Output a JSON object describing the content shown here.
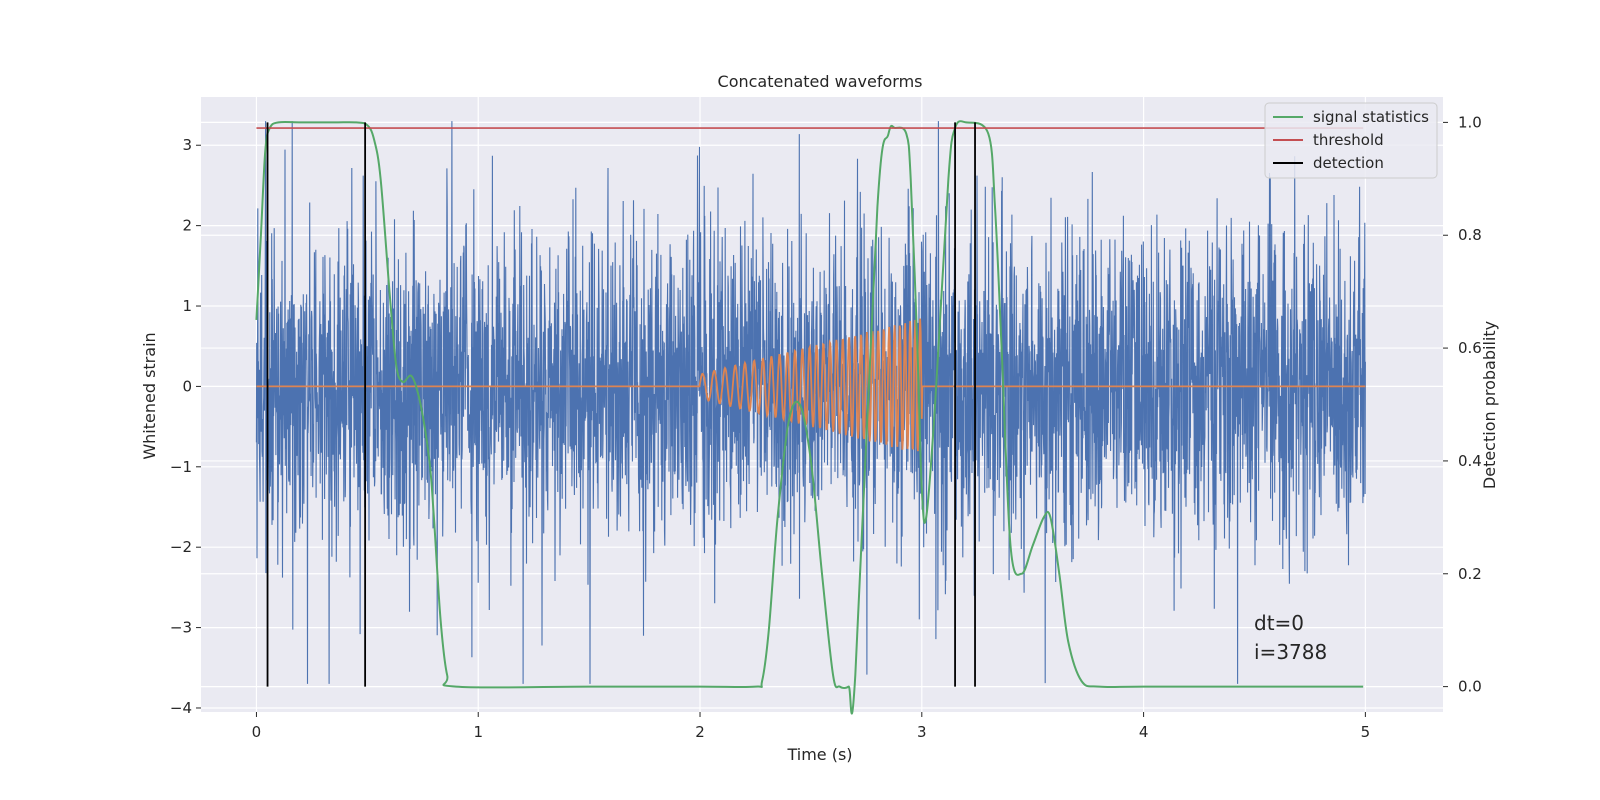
{
  "chart_data": {
    "type": "line",
    "title": "Concatenated waveforms",
    "xlabel": "Time (s)",
    "ylabel_left": "Whitened strain",
    "ylabel_right": "Detection probability",
    "xlim": [
      -0.25,
      5.35
    ],
    "ylim_left": [
      -4.05,
      3.6
    ],
    "ylim_right": [
      -0.045,
      1.045
    ],
    "x_ticks": [
      "0",
      "1",
      "2",
      "3",
      "4",
      "5"
    ],
    "x_tick_values": [
      0,
      1,
      2,
      3,
      4,
      5
    ],
    "y_left_ticks": [
      "−4",
      "−3",
      "−2",
      "−1",
      "0",
      "1",
      "2",
      "3"
    ],
    "y_left_tick_values": [
      -4,
      -3,
      -2,
      -1,
      0,
      1,
      2,
      3
    ],
    "y_right_ticks": [
      "0.0",
      "0.2",
      "0.4",
      "0.6",
      "0.8",
      "1.0"
    ],
    "y_right_tick_values": [
      0.0,
      0.2,
      0.4,
      0.6,
      0.8,
      1.0
    ],
    "grid": true,
    "legend_position": "top-right",
    "legend": [
      {
        "label": "signal statistics",
        "color": "#55a868"
      },
      {
        "label": "threshold",
        "color": "#c44e52"
      },
      {
        "label": "detection",
        "color": "#000000"
      }
    ],
    "series": [
      {
        "name": "",
        "axis": "left",
        "color": "#4c72b0",
        "kind": "noise",
        "x_range": [
          0,
          5
        ],
        "typical_amplitude": 1.0,
        "peak_range": [
          -3.7,
          3.3
        ]
      },
      {
        "name": "",
        "axis": "left",
        "color": "#dd8452",
        "kind": "chirp",
        "x_range": [
          2.0,
          3.0
        ],
        "amplitude_start": 0.15,
        "amplitude_end": 0.85,
        "frequency_start_hz": 18,
        "frequency_end_hz": 45
      },
      {
        "name": "signal statistics",
        "axis": "right",
        "color": "#55a868",
        "x": [
          0.0,
          0.02,
          0.04,
          0.06,
          0.1,
          0.2,
          0.35,
          0.45,
          0.5,
          0.53,
          0.56,
          0.6,
          0.63,
          0.66,
          0.7,
          0.74,
          0.78,
          0.8,
          0.83,
          0.86,
          0.9,
          1.5,
          2.0,
          2.25,
          2.28,
          2.31,
          2.35,
          2.4,
          2.45,
          2.5,
          2.55,
          2.6,
          2.63,
          2.67,
          2.7,
          2.8,
          2.85,
          2.88,
          2.93,
          2.95,
          2.98,
          3.0,
          3.02,
          3.06,
          3.12,
          3.15,
          3.2,
          3.3,
          3.33,
          3.36,
          3.4,
          3.45,
          3.5,
          3.55,
          3.58,
          3.62,
          3.66,
          3.72,
          3.8,
          4.0,
          4.5,
          4.99
        ],
        "y": [
          0.65,
          0.8,
          0.95,
          0.99,
          1.0,
          1.0,
          1.0,
          1.0,
          0.995,
          0.97,
          0.9,
          0.7,
          0.57,
          0.54,
          0.55,
          0.5,
          0.4,
          0.3,
          0.12,
          0.02,
          0.0,
          0.0,
          0.0,
          0.0,
          0.01,
          0.1,
          0.3,
          0.47,
          0.5,
          0.4,
          0.2,
          0.02,
          0.0,
          0.0,
          0.02,
          0.85,
          0.98,
          0.99,
          0.98,
          0.9,
          0.6,
          0.35,
          0.3,
          0.5,
          0.9,
          0.99,
          1.0,
          0.98,
          0.85,
          0.6,
          0.25,
          0.2,
          0.25,
          0.3,
          0.3,
          0.2,
          0.08,
          0.01,
          0.0,
          0.0,
          0.0,
          0.0
        ]
      },
      {
        "name": "threshold",
        "axis": "right",
        "color": "#c44e52",
        "x": [
          0,
          4.99
        ],
        "y": [
          0.99,
          0.99
        ]
      },
      {
        "name": "detection",
        "axis": "right",
        "color": "#000000",
        "kind": "vlines",
        "x": [
          0.05,
          0.49,
          3.15,
          3.24
        ],
        "y_range": [
          0.0,
          1.0
        ]
      }
    ],
    "annotations": [
      "dt=0",
      "i=3788"
    ]
  }
}
